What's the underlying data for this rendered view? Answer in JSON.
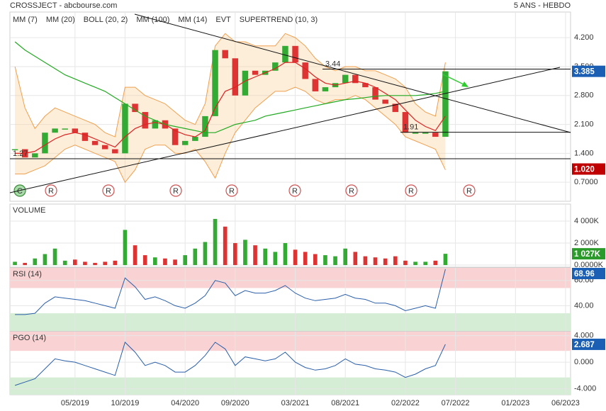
{
  "header": {
    "title": "CROSSJECT - abcbourse.com",
    "period": "5 ANS - HEBDO"
  },
  "chart_data": [
    {
      "type": "candlestick",
      "values": [
        1.5,
        1.3,
        1.4,
        1.9,
        2.0,
        2.0,
        1.9,
        1.7,
        1.6,
        1.5,
        1.4,
        2.6,
        2.4,
        2.0,
        2.2,
        2.0,
        1.6,
        1.7,
        1.8,
        2.3,
        3.9,
        3.7,
        2.8,
        3.4,
        3.3,
        3.4,
        3.6,
        4.0,
        3.6,
        3.2,
        2.9,
        3.0,
        3.1,
        3.3,
        3.1,
        3.0,
        2.7,
        2.6,
        2.4,
        1.9,
        1.9,
        1.9,
        1.8,
        3.385,
        null,
        null,
        null,
        null,
        null,
        null,
        null,
        null,
        null,
        null,
        null,
        null
      ],
      "series": [
        {
          "name": "MM (7)",
          "color": "#2244cc"
        },
        {
          "name": "MM (20)",
          "color": "#dd2222",
          "values": [
            1.4,
            1.4,
            1.45,
            1.6,
            1.75,
            1.85,
            1.9,
            1.85,
            1.75,
            1.65,
            1.55,
            1.8,
            2.0,
            2.1,
            2.15,
            2.1,
            1.95,
            1.85,
            1.8,
            1.95,
            2.5,
            2.9,
            3.0,
            3.15,
            3.25,
            3.35,
            3.45,
            3.6,
            3.6,
            3.45,
            3.25,
            3.1,
            3.05,
            3.1,
            3.15,
            3.1,
            3.0,
            2.85,
            2.7,
            2.45,
            2.2,
            2.05,
            1.95,
            2.3,
            null,
            null,
            null,
            null,
            null,
            null,
            null,
            null,
            null,
            null,
            null,
            null
          ]
        },
        {
          "name": "BOLL (20, 2)",
          "color": "#f0a050",
          "upper": [
            3.5,
            2.5,
            2.0,
            2.3,
            2.5,
            2.4,
            2.3,
            2.2,
            2.1,
            1.9,
            1.8,
            3.0,
            3.0,
            2.8,
            2.7,
            2.6,
            2.4,
            2.2,
            2.1,
            2.6,
            4.0,
            4.3,
            4.1,
            4.1,
            4.0,
            4.0,
            4.0,
            4.3,
            4.2,
            4.0,
            3.7,
            3.5,
            3.4,
            3.5,
            3.5,
            3.4,
            3.4,
            3.3,
            3.2,
            3.0,
            2.6,
            2.4,
            2.3,
            3.6,
            null,
            null,
            null,
            null,
            null,
            null,
            null,
            null,
            null,
            null,
            null,
            null
          ],
          "lower": [
            0.9,
            0.9,
            1.0,
            1.1,
            1.3,
            1.5,
            1.6,
            1.5,
            1.4,
            1.3,
            1.2,
            0.7,
            1.0,
            1.5,
            1.6,
            1.6,
            1.4,
            1.4,
            1.5,
            1.2,
            0.8,
            1.4,
            1.9,
            2.2,
            2.5,
            2.7,
            2.9,
            2.9,
            3.0,
            2.9,
            2.7,
            2.6,
            2.7,
            2.7,
            2.8,
            2.7,
            2.5,
            2.3,
            2.1,
            1.8,
            1.7,
            1.6,
            1.5,
            1.0,
            null,
            null,
            null,
            null,
            null,
            null,
            null,
            null,
            null,
            null,
            null,
            null
          ]
        },
        {
          "name": "MM (100)",
          "color": "#22aa22",
          "values": [
            4.1,
            3.9,
            3.75,
            3.6,
            3.45,
            3.3,
            3.2,
            3.1,
            3.0,
            2.9,
            2.75,
            2.6,
            2.45,
            2.3,
            2.2,
            2.1,
            2.05,
            2.0,
            1.95,
            1.9,
            1.9,
            2.0,
            2.1,
            2.15,
            2.2,
            2.3,
            2.35,
            2.4,
            2.45,
            2.5,
            2.55,
            2.6,
            2.65,
            2.7,
            2.72,
            2.75,
            2.78,
            2.8,
            2.8,
            2.8,
            2.8,
            2.82,
            2.85,
            2.9,
            null,
            null,
            null,
            null,
            null,
            null,
            null,
            null,
            null,
            null,
            null,
            null
          ]
        },
        {
          "name": "MM (14)",
          "color": "#000000"
        },
        {
          "name": "EVT",
          "color": "#000000"
        },
        {
          "name": "SUPERTREND (10, 3)",
          "color": "#990000"
        }
      ],
      "ylim": [
        0.24,
        4.82
      ],
      "yticks": [
        {
          "value": 4.2,
          "label": "4.200"
        },
        {
          "value": 3.5,
          "label": "3.500"
        },
        {
          "value": 2.8,
          "label": "2.800"
        },
        {
          "value": 2.1,
          "label": "2.100"
        },
        {
          "value": 1.4,
          "label": "1.400"
        },
        {
          "value": 0.7,
          "label": "0.7000"
        }
      ],
      "levels": [
        3.44,
        1.91,
        1.27
      ],
      "badges": [
        {
          "value": 3.385,
          "color": "#1a5fb4"
        },
        {
          "value": 1.02,
          "label": "1.020",
          "color": "#c00000"
        }
      ],
      "events": [
        "C",
        "R",
        "R",
        "R",
        "R",
        "R",
        "R",
        "R",
        "R"
      ],
      "grid": true
    },
    {
      "type": "bar",
      "title": "VOLUME",
      "values": [
        300,
        200,
        600,
        1000,
        1500,
        400,
        500,
        300,
        200,
        300,
        400,
        3200,
        1800,
        900,
        700,
        600,
        500,
        900,
        1500,
        2100,
        4200,
        3500,
        2000,
        2300,
        1800,
        1500,
        1200,
        2000,
        1400,
        1200,
        1000,
        900,
        800,
        1500,
        1200,
        800,
        700,
        600,
        800,
        400,
        300,
        300,
        400,
        1027,
        null,
        null,
        null,
        null,
        null,
        null,
        null,
        null,
        null,
        null,
        null,
        null
      ],
      "colors": {
        "up": "#33aa33",
        "down": "#dd3333"
      },
      "ylim": [
        -190,
        5550
      ],
      "yticks": [
        {
          "value": 4000,
          "label": "4 000K"
        },
        {
          "value": 2000,
          "label": "2 000K"
        },
        {
          "value": 0,
          "label": "0.0000K"
        }
      ],
      "badges": [
        {
          "value": 1027,
          "label": "1 027K",
          "color": "#2a9a2a"
        }
      ],
      "grid": true
    },
    {
      "type": "line",
      "title": "RSI (14)",
      "color": "#2a5faa",
      "values": [
        33,
        33,
        34,
        42,
        47,
        46,
        45,
        44,
        42,
        40,
        38,
        62,
        55,
        45,
        47,
        44,
        40,
        38,
        42,
        48,
        60,
        58,
        48,
        52,
        50,
        50,
        52,
        56,
        50,
        46,
        44,
        45,
        46,
        49,
        46,
        45,
        42,
        42,
        40,
        36,
        38,
        40,
        38,
        68.96,
        null,
        null,
        null,
        null,
        null,
        null,
        null,
        null,
        null,
        null,
        null,
        null
      ],
      "ylim": [
        20,
        70
      ],
      "yticks": [
        {
          "value": 60,
          "label": "60.00"
        },
        {
          "value": 40,
          "label": "40.00"
        }
      ],
      "zones": [
        {
          "from": 54,
          "to": 70,
          "color": "#f9d3d3"
        },
        {
          "from": 20,
          "to": 34,
          "color": "#d5ecd5"
        }
      ],
      "badges": [
        {
          "value": 68.96,
          "color": "#1a5fb4"
        }
      ],
      "grid": true
    },
    {
      "type": "line",
      "title": "PGO (14)",
      "color": "#2a5faa",
      "values": [
        -3.5,
        -3,
        -2.5,
        -1,
        0.5,
        0.2,
        0,
        -0.5,
        -1,
        -1.5,
        -2,
        3,
        1.5,
        -0.5,
        0,
        -0.5,
        -1.5,
        -1.5,
        -0.5,
        1,
        3,
        2,
        -0.5,
        0.8,
        0.5,
        0.2,
        0.5,
        1.5,
        0,
        -0.8,
        -1.2,
        -1,
        -0.5,
        0.5,
        -0.3,
        -0.5,
        -1,
        -1.2,
        -1.5,
        -2.3,
        -1.8,
        -1,
        -0.5,
        2.687,
        null,
        null,
        null,
        null,
        null,
        null,
        null,
        null,
        null,
        null,
        null,
        null
      ],
      "ylim": [
        -4.9,
        4.6
      ],
      "yticks": [
        {
          "value": 4,
          "label": "4.000"
        },
        {
          "value": 0,
          "label": "0.000"
        },
        {
          "value": -4,
          "label": "-4.000"
        }
      ],
      "zones": [
        {
          "from": 1.7,
          "to": 4.6,
          "color": "#f9d3d3"
        },
        {
          "from": -4.9,
          "to": -2.3,
          "color": "#d5ecd5"
        }
      ],
      "badges": [
        {
          "value": 2.687,
          "color": "#1a5fb4"
        }
      ],
      "categories": [
        null,
        null,
        null,
        null,
        null,
        null,
        "05/2019",
        null,
        null,
        null,
        null,
        "10/2019",
        null,
        null,
        null,
        null,
        null,
        "04/2020",
        null,
        null,
        null,
        null,
        "09/2020",
        null,
        null,
        null,
        null,
        null,
        "03/2021",
        null,
        null,
        null,
        null,
        "08/2021",
        null,
        null,
        null,
        null,
        null,
        "02/2022",
        null,
        null,
        null,
        null,
        "07/2022",
        null,
        null,
        null,
        null,
        null,
        "01/2023",
        null,
        null,
        null,
        null,
        "06/2023"
      ],
      "grid": true
    }
  ]
}
